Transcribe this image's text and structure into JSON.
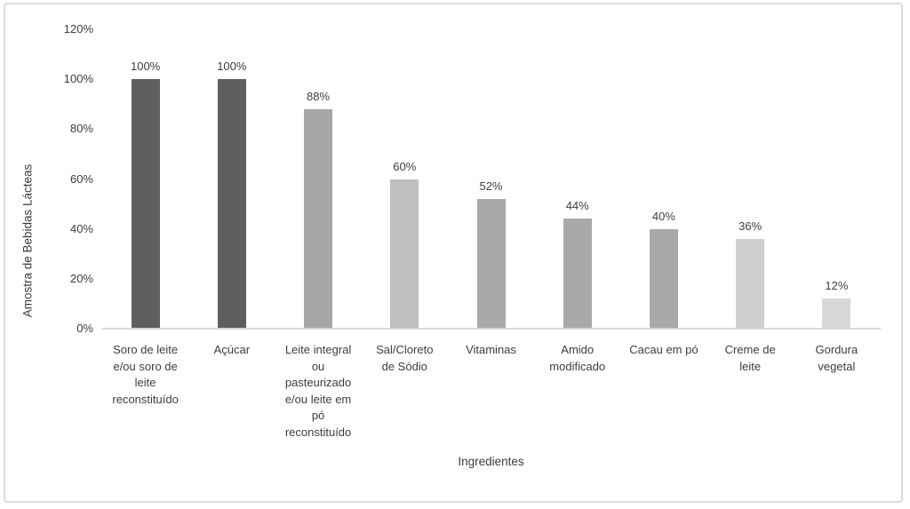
{
  "chart_data": {
    "type": "bar",
    "title": "",
    "xlabel": "Ingredientes",
    "ylabel": "Amostra de Bebidas Lácteas",
    "categories": [
      "Soro de leite e/ou soro de leite reconstituído",
      "Açúcar",
      "Leite integral ou pasteurizado e/ou leite em pó reconstituído",
      "Sal/Cloreto de Sódio",
      "Vitaminas",
      "Amido modificado",
      "Cacau em pó",
      "Creme de leite",
      "Gordura vegetal"
    ],
    "values": [
      100,
      100,
      88,
      60,
      52,
      44,
      40,
      36,
      12
    ],
    "data_labels": [
      "100%",
      "100%",
      "88%",
      "60%",
      "52%",
      "44%",
      "40%",
      "36%",
      "12%"
    ],
    "bar_colors": [
      "#5f5f5f",
      "#5f5f5f",
      "#a6a6a6",
      "#bfbfbf",
      "#a9a9a9",
      "#a9a9a9",
      "#a9a9a9",
      "#cfcfcf",
      "#d8d8d8"
    ],
    "ylim": [
      0,
      120
    ],
    "y_ticks": [
      {
        "value": 0,
        "label": "0%"
      },
      {
        "value": 20,
        "label": "20%"
      },
      {
        "value": 40,
        "label": "40%"
      },
      {
        "value": 60,
        "label": "60%"
      },
      {
        "value": 80,
        "label": "80%"
      },
      {
        "value": 100,
        "label": "100%"
      },
      {
        "value": 120,
        "label": "120%"
      }
    ],
    "grid": false,
    "legend": false,
    "axis_line_color": "#d9d9d9",
    "text_color": "#3b3b3b",
    "background_color": "#ffffff",
    "border_color": "#dcdcdc"
  }
}
